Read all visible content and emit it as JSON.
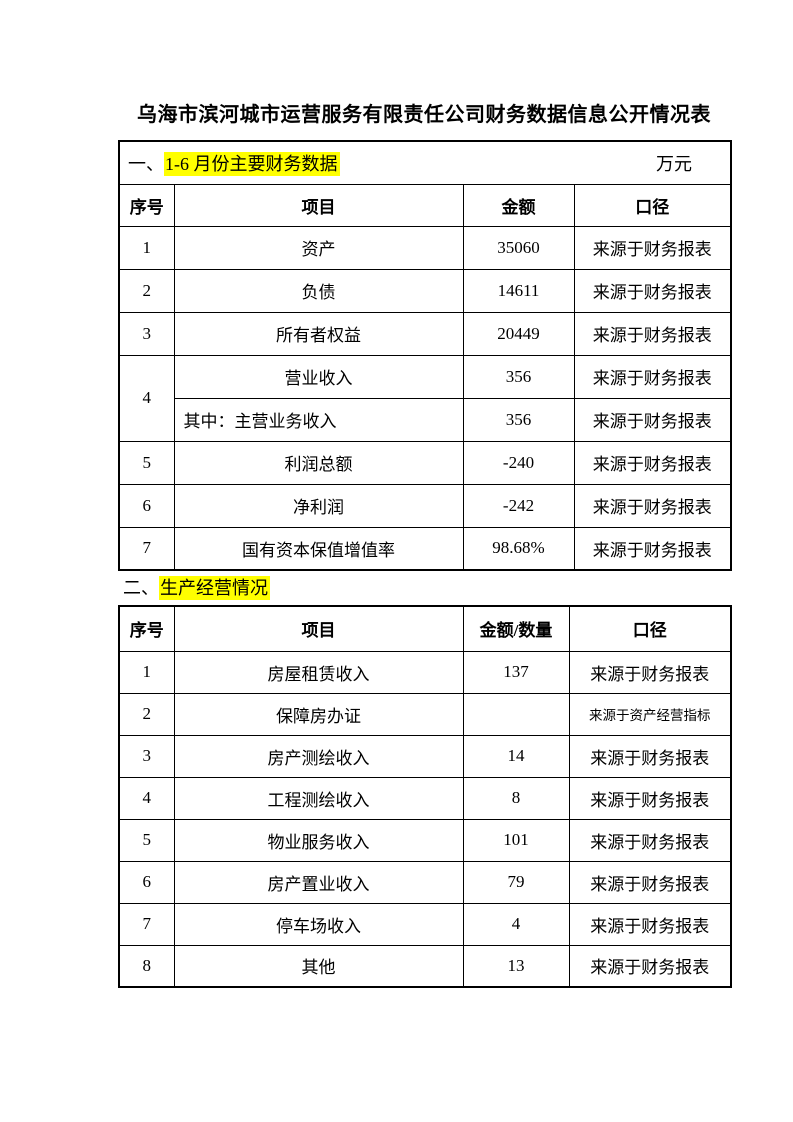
{
  "page": {
    "title": "乌海市滨河城市运营服务有限责任公司财务数据信息公开情况表"
  },
  "highlight_color": "#ffff00",
  "section1": {
    "prefix": "一、",
    "heading": "1-6 月份主要财务数据",
    "unit": "万元",
    "table": {
      "headers": [
        "序号",
        "项目",
        "金额",
        "口径"
      ],
      "rows": [
        {
          "no": "1",
          "item": "资产",
          "amount": "35060",
          "source": "来源于财务报表"
        },
        {
          "no": "2",
          "item": "负债",
          "amount": "14611",
          "source": "来源于财务报表"
        },
        {
          "no": "3",
          "item": "所有者权益",
          "amount": "20449",
          "source": "来源于财务报表"
        },
        {
          "no": "4",
          "no_rowspan": 2,
          "item": "营业收入",
          "amount": "356",
          "source": "来源于财务报表"
        },
        {
          "no": null,
          "item": "其中：主营业务收入",
          "item_align": "left",
          "amount": "356",
          "source": "来源于财务报表"
        },
        {
          "no": "5",
          "item": "利润总额",
          "amount": "-240",
          "source": "来源于财务报表"
        },
        {
          "no": "6",
          "item": "净利润",
          "amount": "-242",
          "source": "来源于财务报表"
        },
        {
          "no": "7",
          "item": "国有资本保值增值率",
          "amount": "98.68%",
          "source": "来源于财务报表"
        }
      ]
    }
  },
  "section2": {
    "prefix": "二、",
    "heading": "生产经营情况",
    "table": {
      "headers": [
        "序号",
        "项目",
        "金额/数量",
        "口径"
      ],
      "rows": [
        {
          "no": "1",
          "item": "房屋租赁收入",
          "amount": "137",
          "source": "来源于财务报表"
        },
        {
          "no": "2",
          "item": "保障房办证",
          "amount": "",
          "source": "来源于资产经营指标",
          "source_small": true
        },
        {
          "no": "3",
          "item": "房产测绘收入",
          "amount": "14",
          "source": "来源于财务报表"
        },
        {
          "no": "4",
          "item": "工程测绘收入",
          "amount": "8",
          "source": "来源于财务报表"
        },
        {
          "no": "5",
          "item": "物业服务收入",
          "amount": "101",
          "source": "来源于财务报表"
        },
        {
          "no": "6",
          "item": "房产置业收入",
          "amount": "79",
          "source": "来源于财务报表"
        },
        {
          "no": "7",
          "item": "停车场收入",
          "amount": "4",
          "source": "来源于财务报表"
        },
        {
          "no": "8",
          "item": "其他",
          "amount": "13",
          "source": "来源于财务报表"
        }
      ]
    }
  }
}
